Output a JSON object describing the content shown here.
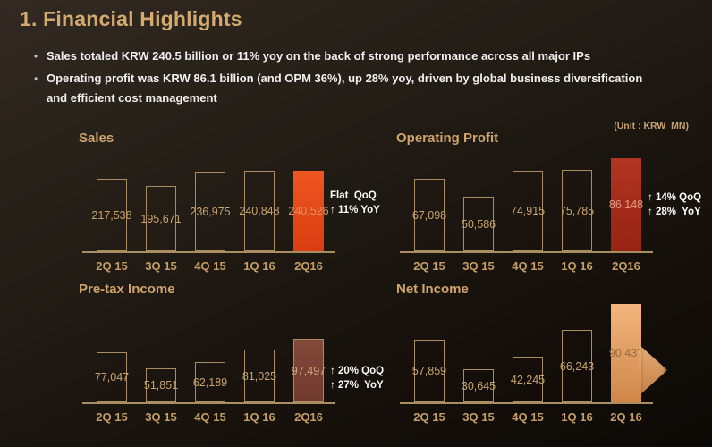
{
  "slide": {
    "title": "1. Financial Highlights",
    "unit_note": "(Unit : KRW  MN)",
    "bullets": [
      "Sales totaled KRW 240.5 billion or 11% yoy on the back of strong performance across all major IPs",
      "Operating profit was KRW 86.1 billion (and OPM 36%), up 28% yoy, driven by global business diversification and efficient cost management"
    ]
  },
  "colors": {
    "background_top": "#322a22",
    "background_bottom": "#0c0906",
    "title_tan": "#d4a96f",
    "bullet_text": "#f2f0ed",
    "chart_title": "#cfa46c",
    "bar_outline": "#ab8c5e",
    "axis": "#a98e62",
    "value_label": "#c9a36e",
    "category_label": "#c49e66",
    "annotation_text": "#fdfcfb",
    "sales_highlight": "#e8481a",
    "operating_profit_highlight": "#a62b1c",
    "pretax_highlight": "#7a4236",
    "net_income_highlight": "#eba364"
  },
  "chart_data": [
    {
      "type": "bar",
      "title": "Sales",
      "unit": "KRW MN",
      "categories": [
        "2Q 15",
        "3Q 15",
        "4Q 15",
        "1Q 16",
        "2Q16"
      ],
      "values": [
        217538,
        195671,
        236975,
        240848,
        240526
      ],
      "value_labels": [
        "217,538",
        "195,671",
        "236,975",
        "240,848",
        "240,526"
      ],
      "highlight_index": 4,
      "highlight": {
        "fill_top": "#ef5620",
        "fill_bottom": "#d93d10",
        "border": "",
        "label_color": "#dd9468",
        "arrow_marker": false
      },
      "annotations": [
        "Flat  QoQ",
        "↑ 11% YoY"
      ],
      "ylim": [
        0,
        240848
      ],
      "grid": false,
      "legend": false
    },
    {
      "type": "bar",
      "title": "Operating Profit",
      "unit": "KRW MN",
      "categories": [
        "2Q 15",
        "3Q 15",
        "4Q 15",
        "1Q 16",
        "2Q16"
      ],
      "values": [
        67098,
        50586,
        74915,
        75785,
        86148
      ],
      "value_labels": [
        "67,098",
        "50,586",
        "74,915",
        "75,785",
        "86,148"
      ],
      "highlight_index": 4,
      "highlight": {
        "fill_top": "#b23523",
        "fill_bottom": "#962314",
        "border": "",
        "label_color": "#e09d85",
        "arrow_marker": false
      },
      "annotations": [
        "↑ 14% QoQ",
        "↑ 28%  YoY"
      ],
      "ylim": [
        0,
        86148
      ],
      "grid": false,
      "legend": false
    },
    {
      "type": "bar",
      "title": "Pre-tax Income",
      "unit": "KRW MN",
      "categories": [
        "2Q 15",
        "3Q 15",
        "4Q 15",
        "1Q 16",
        "2Q16"
      ],
      "values": [
        77047,
        51851,
        62189,
        81025,
        97497
      ],
      "value_labels": [
        "77,047",
        "51,851",
        "62,189",
        "81,025",
        "97,497"
      ],
      "highlight_index": 4,
      "highlight": {
        "fill_top": "#83493a",
        "fill_bottom": "#703a2e",
        "border": "#ab8c5e",
        "label_color": "#cfa57b",
        "arrow_marker": false
      },
      "annotations": [
        "↑ 20% QoQ",
        "↑ 27%  YoY"
      ],
      "ylim": [
        0,
        97497
      ],
      "grid": false,
      "legend": false
    },
    {
      "type": "bar",
      "title": "Net Income",
      "unit": "KRW MN",
      "categories": [
        "2Q 15",
        "3Q 15",
        "4Q 15",
        "1Q 16",
        "2Q 16"
      ],
      "values": [
        57859,
        30645,
        42245,
        66243,
        90437
      ],
      "value_labels": [
        "57,859",
        "30,645",
        "42,245",
        "66,243",
        "90,437"
      ],
      "highlight_index": 4,
      "highlight": {
        "fill_top": "#f3b57d",
        "fill_bottom": "#cf8748",
        "border": "",
        "label_color": "#9a6a42",
        "arrow_marker": true
      },
      "annotations": [],
      "ylim": [
        0,
        90437
      ],
      "grid": false,
      "legend": false
    }
  ]
}
